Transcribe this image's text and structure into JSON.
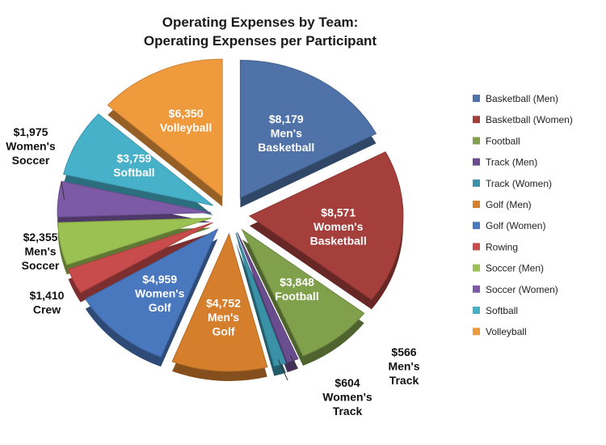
{
  "chart_data": {
    "type": "pie",
    "exploded": true,
    "title": "Operating Expenses by Team:",
    "subtitle": "Operating Expenses per Participant",
    "legend_position": "right",
    "slices": [
      {
        "name": "Basketball (Men)",
        "value": 8179,
        "value_label": "$8,179",
        "label": "Men's Basketball",
        "color": "#4f73a8",
        "label_position": "inside"
      },
      {
        "name": "Basketball (Women)",
        "value": 8571,
        "value_label": "$8,571",
        "label": "Women's Basketball",
        "color": "#a43f3c",
        "label_position": "inside"
      },
      {
        "name": "Football",
        "value": 3848,
        "value_label": "$3,848",
        "label": "Football",
        "color": "#80a04c",
        "label_position": "inside"
      },
      {
        "name": "Track (Men)",
        "value": 566,
        "value_label": "$566",
        "label": "Men's Track",
        "color": "#6a4d8e",
        "label_position": "outside"
      },
      {
        "name": "Track (Women)",
        "value": 604,
        "value_label": "$604",
        "label": "Women's Track",
        "color": "#3a92a8",
        "label_position": "outside"
      },
      {
        "name": "Golf (Men)",
        "value": 4752,
        "value_label": "$4,752",
        "label": "Men's Golf",
        "color": "#d57f2d",
        "label_position": "inside"
      },
      {
        "name": "Golf (Women)",
        "value": 4959,
        "value_label": "$4,959",
        "label": "Women's Golf",
        "color": "#4a78bf",
        "label_position": "inside"
      },
      {
        "name": "Rowing",
        "value": 1410,
        "value_label": "$1,410",
        "label": "Crew",
        "color": "#c94c4c",
        "label_position": "outside"
      },
      {
        "name": "Soccer (Men)",
        "value": 2355,
        "value_label": "$2,355",
        "label": "Men's Soccer",
        "color": "#9bc153",
        "label_position": "outside"
      },
      {
        "name": "Soccer (Women)",
        "value": 1975,
        "value_label": "$1,975",
        "label": "Women's Soccer",
        "color": "#7c5aa6",
        "label_position": "outside"
      },
      {
        "name": "Softball",
        "value": 3759,
        "value_label": "$3,759",
        "label": "Softball",
        "color": "#46b1c9",
        "label_position": "inside"
      },
      {
        "name": "Volleyball",
        "value": 6350,
        "value_label": "$6,350",
        "label": "Volleyball",
        "color": "#f09a3e",
        "label_position": "inside"
      }
    ]
  }
}
